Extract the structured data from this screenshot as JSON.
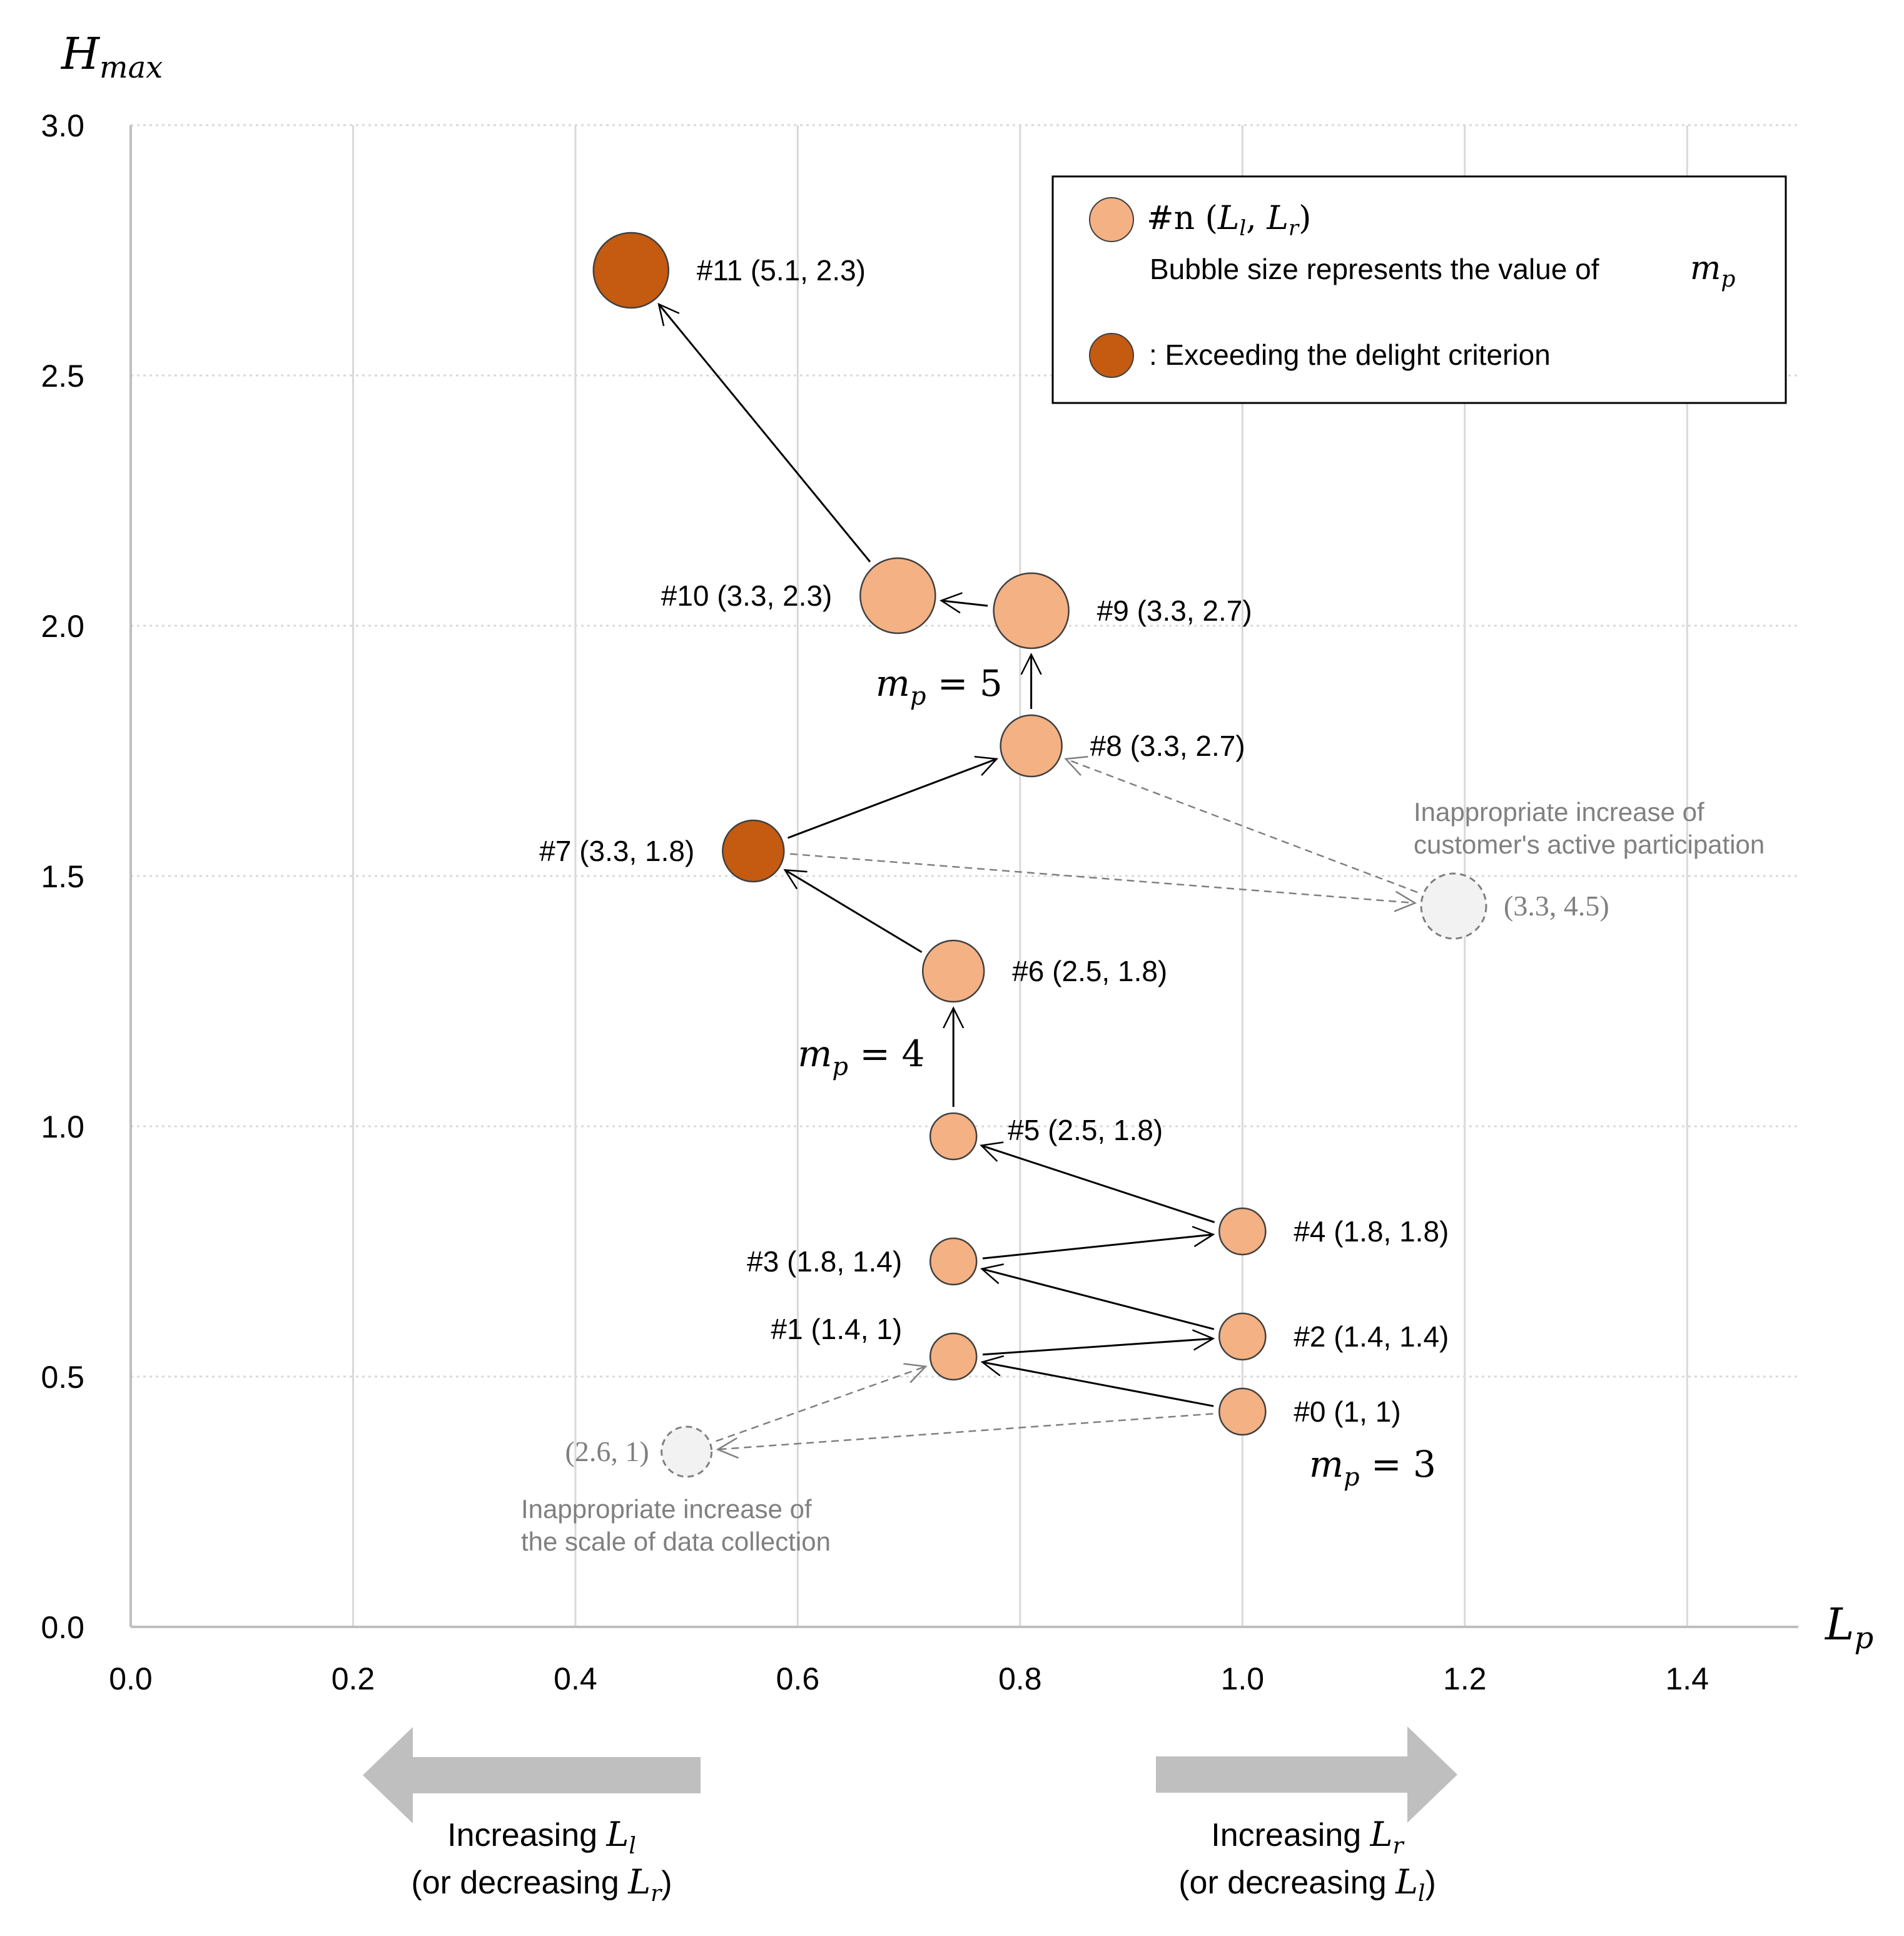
{
  "chart_data": {
    "type": "scatter",
    "title": "",
    "xlabel": "L",
    "xlabel_sub": "p",
    "ylabel": "H",
    "ylabel_sub": "max",
    "xlim": [
      0,
      1.5
    ],
    "ylim": [
      0,
      3.0
    ],
    "x_ticks": [
      "0.0",
      "0.2",
      "0.4",
      "0.6",
      "0.8",
      "1.0",
      "1.2",
      "1.4"
    ],
    "y_ticks": [
      "0.0",
      "0.5",
      "1.0",
      "1.5",
      "2.0",
      "2.5",
      "3.0"
    ],
    "grid": {
      "vertical": "solid",
      "horizontal": "dotted"
    },
    "points": [
      {
        "id": "#0",
        "label": "#0 (1, 1)",
        "x": 1.0,
        "y": 0.43,
        "mp": 3,
        "delight": false
      },
      {
        "id": "#1",
        "label": "#1 (1.4, 1)",
        "x": 0.74,
        "y": 0.54,
        "mp": 3,
        "delight": false
      },
      {
        "id": "#2",
        "label": "#2 (1.4, 1.4)",
        "x": 1.0,
        "y": 0.58,
        "mp": 3,
        "delight": false
      },
      {
        "id": "#3",
        "label": "#3 (1.8, 1.4)",
        "x": 0.74,
        "y": 0.73,
        "mp": 3,
        "delight": false
      },
      {
        "id": "#4",
        "label": "#4 (1.8, 1.8)",
        "x": 1.0,
        "y": 0.79,
        "mp": 3,
        "delight": false
      },
      {
        "id": "#5",
        "label": "#5 (2.5, 1.8)",
        "x": 0.74,
        "y": 0.98,
        "mp": 3,
        "delight": false
      },
      {
        "id": "#6",
        "label": "#6 (2.5, 1.8)",
        "x": 0.74,
        "y": 1.31,
        "mp": 4,
        "delight": false
      },
      {
        "id": "#7",
        "label": "#7 (3.3, 1.8)",
        "x": 0.56,
        "y": 1.55,
        "mp": 4,
        "delight": true
      },
      {
        "id": "#8",
        "label": "#8 (3.3, 2.7)",
        "x": 0.81,
        "y": 1.76,
        "mp": 4,
        "delight": false
      },
      {
        "id": "#9",
        "label": "#9 (3.3, 2.7)",
        "x": 0.81,
        "y": 2.03,
        "mp": 5,
        "delight": false
      },
      {
        "id": "#10",
        "label": "#10 (3.3, 2.3)",
        "x": 0.69,
        "y": 2.06,
        "mp": 5,
        "delight": false
      },
      {
        "id": "#11",
        "label": "#11 (5.1, 2.3)",
        "x": 0.45,
        "y": 2.71,
        "mp": 5,
        "delight": true
      }
    ],
    "ghost_points": [
      {
        "label": "(2.6, 1)",
        "x": 0.5,
        "y": 0.35,
        "note": [
          "Inappropriate increase of",
          "the scale of data collection"
        ]
      },
      {
        "label": "(3.3, 4.5)",
        "x": 1.19,
        "y": 1.44,
        "note": [
          "Inappropriate increase of",
          "customer's active participation"
        ]
      }
    ],
    "transitions": [
      [
        "#0",
        "#1"
      ],
      [
        "#1",
        "#2"
      ],
      [
        "#2",
        "#3"
      ],
      [
        "#3",
        "#4"
      ],
      [
        "#4",
        "#5"
      ],
      [
        "#5",
        "#6"
      ],
      [
        "#6",
        "#7"
      ],
      [
        "#7",
        "#8"
      ],
      [
        "#8",
        "#9"
      ],
      [
        "#9",
        "#10"
      ],
      [
        "#10",
        "#11"
      ]
    ],
    "dashed_transitions": [
      [
        "#0",
        "ghost0"
      ],
      [
        "ghost0",
        "#1"
      ],
      [
        "#7",
        "ghost1"
      ],
      [
        "ghost1",
        "#8"
      ]
    ],
    "mp_annotations": [
      {
        "text": "= 3",
        "x": 1.06,
        "y": 0.3
      },
      {
        "text": "= 4",
        "x": 0.6,
        "y": 1.12
      },
      {
        "text": "= 5",
        "x": 0.67,
        "y": 1.86
      }
    ],
    "legend": {
      "position": "top-right",
      "entry1_prefix": "#n (",
      "entry1_suffix": ")",
      "entry1_vars": [
        "L",
        "l",
        "L",
        "r"
      ],
      "entry1_desc": "Bubble size represents the value of",
      "entry2": ": Exceeding the delight criterion"
    },
    "colors": {
      "bubble": "#f4b183",
      "delight": "#c55a11",
      "ghost_fill": "#f2f2f2",
      "ghost_stroke": "#7f7f7f",
      "grid": "#d9d9d9",
      "big_arrow": "#bfbfbf"
    },
    "directions": {
      "left": {
        "line1": "Increasing",
        "var1": [
          "L",
          "l"
        ],
        "line2_prefix": "(or decreasing",
        "var2": [
          "L",
          "r"
        ],
        "line2_suffix": ")"
      },
      "right": {
        "line1": "Increasing",
        "var1": [
          "L",
          "r"
        ],
        "line2_prefix": "(or decreasing",
        "var2": [
          "L",
          "l"
        ],
        "line2_suffix": ")"
      }
    }
  }
}
